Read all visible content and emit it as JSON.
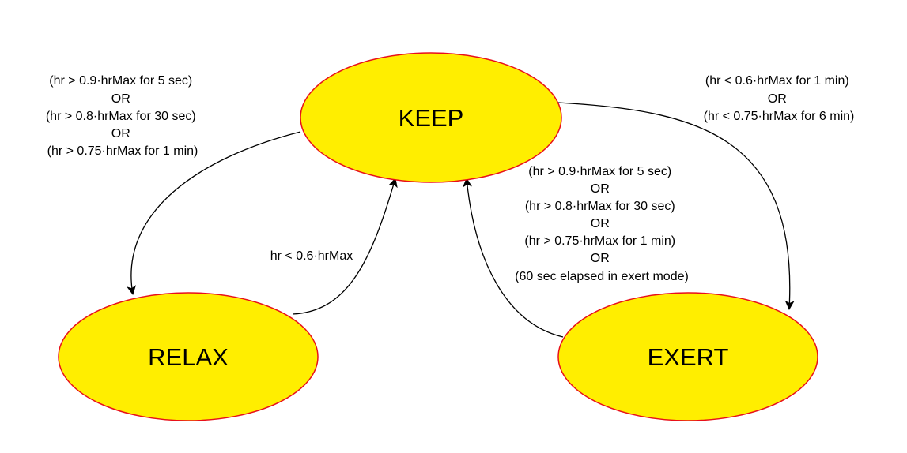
{
  "diagram": {
    "colors": {
      "state_fill": "#ffee00",
      "state_stroke": "#e8101a",
      "edge": "#000000"
    },
    "states": {
      "keep": "KEEP",
      "relax": "RELAX",
      "exert": "EXERT"
    },
    "transitions": {
      "keep_to_relax": [
        "(hr > 0.9·hrMax for 5 sec)",
        "OR",
        "(hr > 0.8·hrMax for 30 sec)",
        "OR",
        "(hr > 0.75·hrMax for 1 min)"
      ],
      "relax_to_keep": [
        "hr < 0.6·hrMax"
      ],
      "keep_to_exert": [
        "(hr < 0.6·hrMax for 1 min)",
        "OR",
        "(hr < 0.75·hrMax for 6 min)"
      ],
      "exert_to_keep": [
        "(hr > 0.9·hrMax for 5 sec)",
        "OR",
        "(hr > 0.8·hrMax for 30 sec)",
        "OR",
        "(hr > 0.75·hrMax for 1 min)",
        "OR",
        "(60 sec elapsed in exert mode)"
      ]
    }
  }
}
